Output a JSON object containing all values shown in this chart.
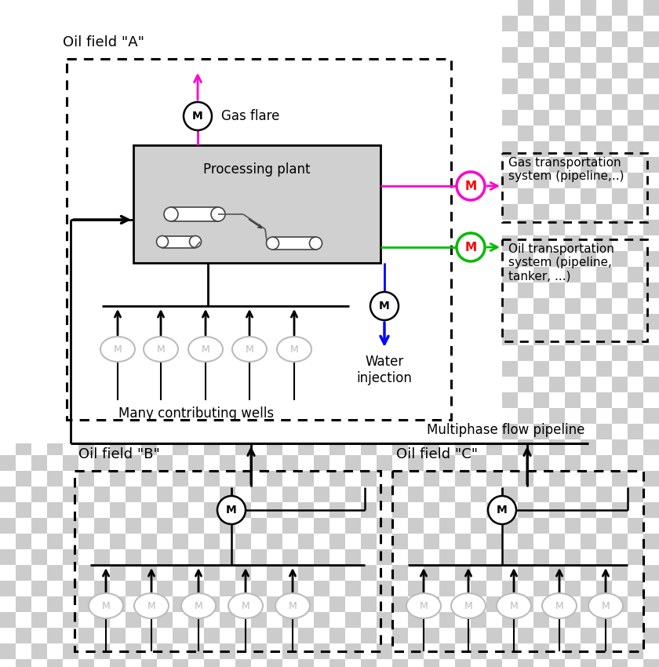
{
  "color_magenta": "#ff00cc",
  "color_green": "#00bb00",
  "color_blue": "#0000ff",
  "color_black": "#000000",
  "color_gray": "#bbbbbb",
  "color_red": "#ff0000",
  "color_proc_bg": "#d0d0d0",
  "label_field_a": "Oil field \"A\"",
  "label_field_b": "Oil field \"B\"",
  "label_field_c": "Oil field \"C\"",
  "label_gas_flare": "Gas flare",
  "label_processing": "Processing plant",
  "label_gas_transport": "Gas transportation\nsystem (pipeline,..)",
  "label_oil_transport": "Oil transportation\nsystem (pipeline,\ntanker, ...)",
  "label_many_wells": "Many contributing wells",
  "label_water": "Water\ninjection",
  "label_multiphase": "Multiphase flow pipeline",
  "checker_light": "#ffffff",
  "checker_dark": "#cccccc",
  "checker_n": 21
}
